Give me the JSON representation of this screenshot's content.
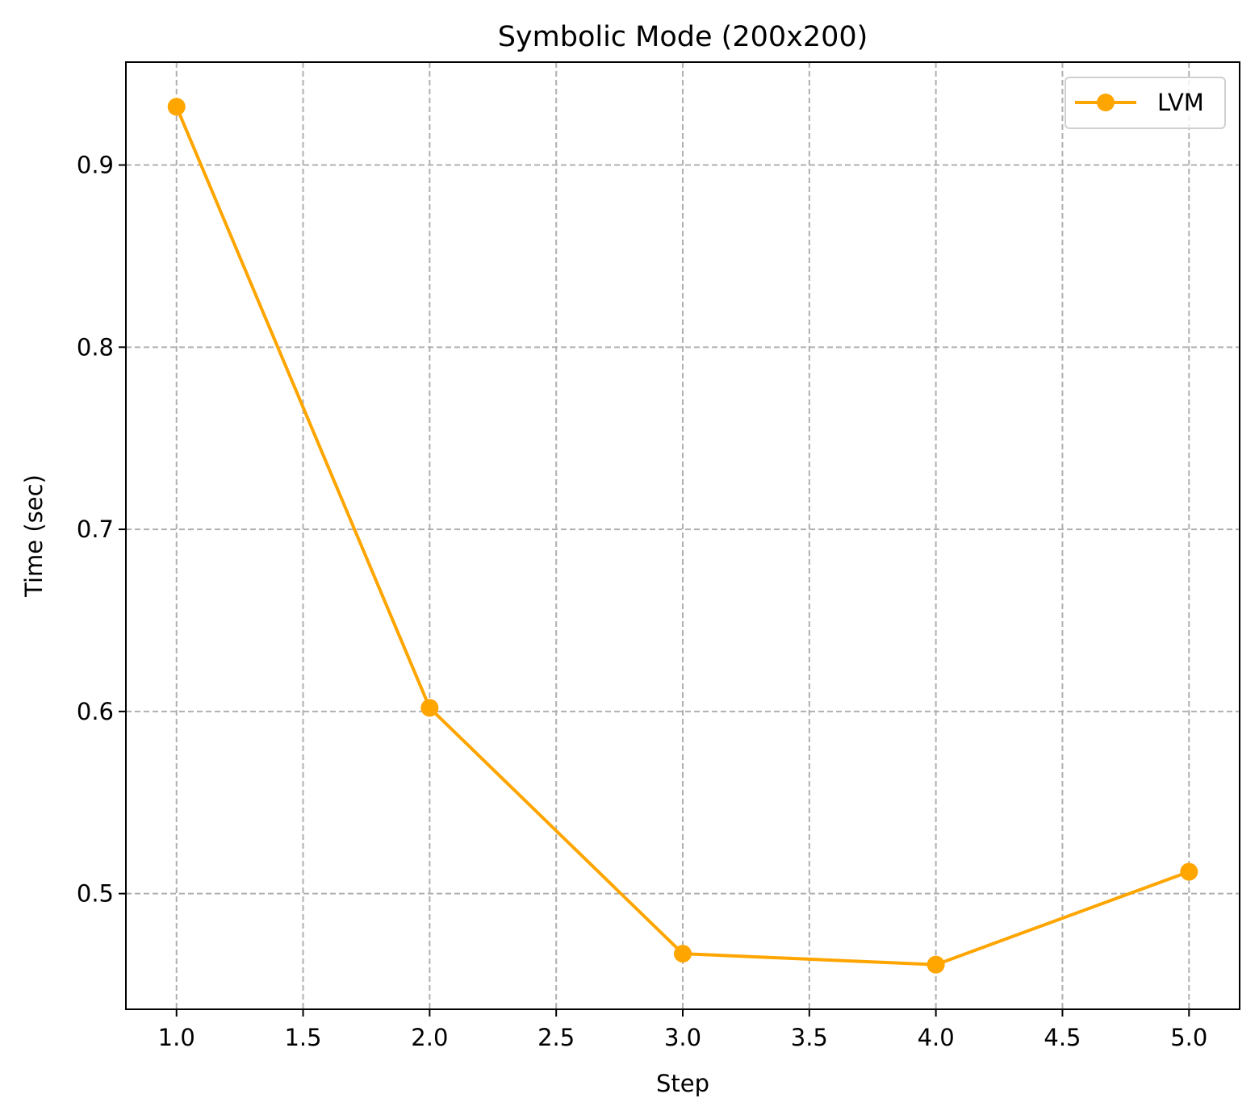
{
  "chart_data": {
    "type": "line",
    "title": "Symbolic Mode (200x200)",
    "xlabel": "Step",
    "ylabel": "Time (sec)",
    "xlim": [
      0.8,
      5.2
    ],
    "ylim": [
      0.4365,
      0.9565
    ],
    "xticks": [
      "1.0",
      "1.5",
      "2.0",
      "2.5",
      "3.0",
      "3.5",
      "4.0",
      "4.5",
      "5.0"
    ],
    "yticks": [
      "0.5",
      "0.6",
      "0.7",
      "0.8",
      "0.9"
    ],
    "grid": true,
    "legend_position": "top-right",
    "series": [
      {
        "name": "LVM",
        "color": "#FFA500",
        "x": [
          1,
          2,
          3,
          4,
          5
        ],
        "y": [
          0.932,
          0.602,
          0.467,
          0.461,
          0.512
        ]
      }
    ]
  }
}
